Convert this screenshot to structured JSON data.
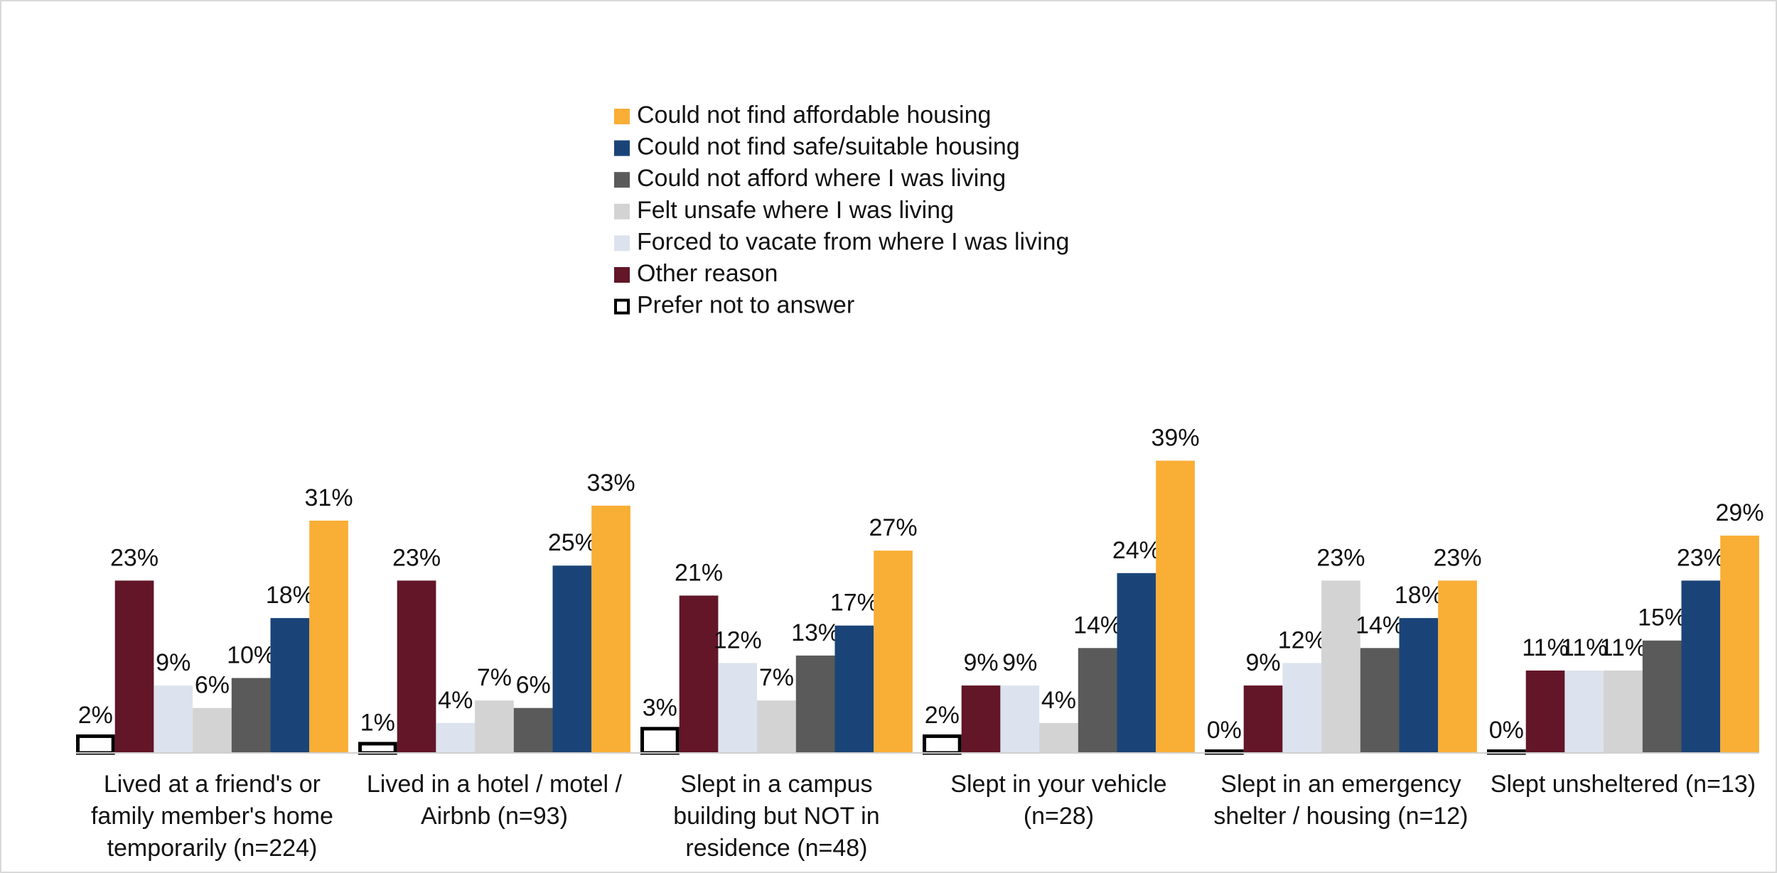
{
  "chart_data": {
    "type": "bar",
    "categories": [
      "Lived at a friend's or family member's home temporarily (n=224)",
      "Lived in a hotel / motel / Airbnb (n=93)",
      "Slept in a campus building but NOT in residence (n=48)",
      "Slept in your vehicle (n=28)",
      "Slept in an emergency shelter / housing (n=12)",
      "Slept unsheltered (n=13)"
    ],
    "series": [
      {
        "name": "Could not find affordable housing",
        "color": "#f9ae35",
        "values": [
          31,
          33,
          27,
          39,
          23,
          29
        ],
        "value_labels": [
          "31%",
          "33%",
          "27%",
          "39%",
          "23%",
          "29%"
        ]
      },
      {
        "name": "Could not find safe/suitable housing",
        "color": "#1a4478",
        "values": [
          18,
          25,
          17,
          24,
          18,
          23
        ],
        "value_labels": [
          "18%",
          "25%",
          "17%",
          "24%",
          "18%",
          "23%"
        ]
      },
      {
        "name": "Could not afford where I was living",
        "color": "#5a5a5a",
        "values": [
          10,
          6,
          13,
          14,
          14,
          15
        ],
        "value_labels": [
          "10%",
          "6%",
          "13%",
          "14%",
          "14%",
          "15%"
        ]
      },
      {
        "name": "Felt unsafe where I was living",
        "color": "#d3d3d3",
        "values": [
          6,
          7,
          7,
          4,
          23,
          11
        ],
        "value_labels": [
          "6%",
          "7%",
          "7%",
          "4%",
          "23%",
          "11%"
        ]
      },
      {
        "name": "Forced to vacate from where I was living",
        "color": "#dce3ee",
        "values": [
          9,
          4,
          12,
          9,
          12,
          11
        ],
        "value_labels": [
          "9%",
          "4%",
          "12%",
          "9%",
          "12%",
          "11%"
        ]
      },
      {
        "name": "Other reason",
        "color": "#621628",
        "values": [
          23,
          23,
          21,
          9,
          9,
          11
        ],
        "value_labels": [
          "23%",
          "23%",
          "21%",
          "9%",
          "9%",
          "11%"
        ]
      },
      {
        "name": "Prefer not to answer",
        "color": "#ffffff",
        "edgecolor": "#000000",
        "values": [
          2,
          1,
          3,
          2,
          0,
          0
        ],
        "value_labels": [
          "2%",
          "1%",
          "3%",
          "2%",
          "0%",
          "0%"
        ]
      }
    ]
  }
}
